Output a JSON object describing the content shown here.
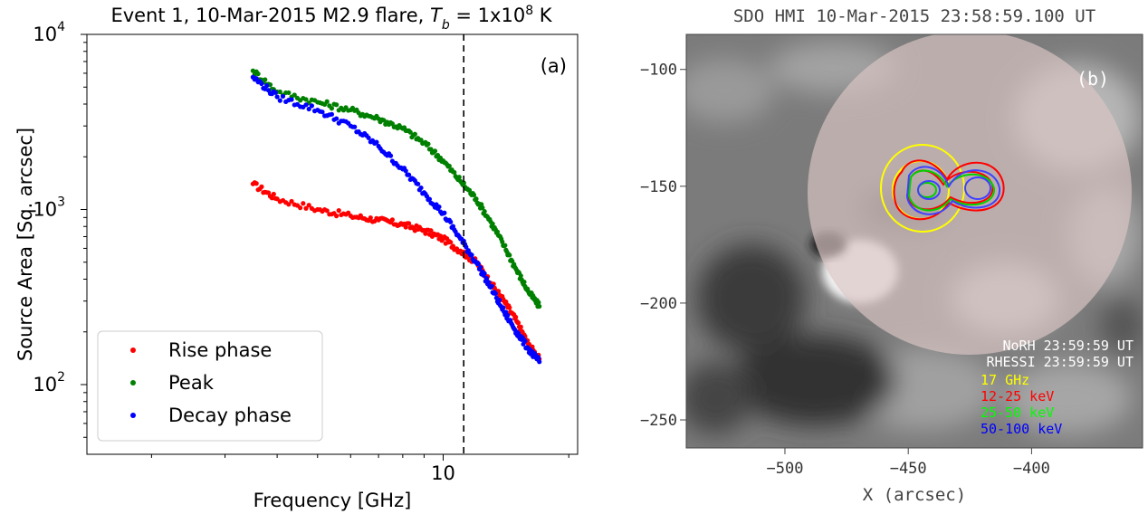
{
  "chart_data": [
    {
      "type": "scatter",
      "panel_label": "(a)",
      "title_prefix": "Event 1, 10-Mar-2015 M2.9 flare, ",
      "title_var": "T",
      "title_sub": "b",
      "title_mid": " = 1x10",
      "title_sup": "8",
      "title_suffix": " K",
      "xlabel": "Frequency [GHz]",
      "ylabel": "Source Area [Sq. arcsec]",
      "xscale": "log",
      "yscale": "log",
      "xlim": [
        1.4,
        21
      ],
      "ylim": [
        40,
        10000
      ],
      "x_major_tick": {
        "value": 10,
        "label": "10"
      },
      "y_major_ticks": [
        {
          "value": 100,
          "base": "10",
          "exp": "2"
        },
        {
          "value": 1000,
          "base": "10",
          "exp": "3"
        },
        {
          "value": 10000,
          "base": "10",
          "exp": "4"
        }
      ],
      "vline": 11.2,
      "legend": {
        "position": "lower-left",
        "entries": [
          "Rise phase",
          "Peak",
          "Decay phase"
        ]
      },
      "series": [
        {
          "name": "Rise phase",
          "color": "#ff0000",
          "x": [
            3.5,
            4.0,
            5.0,
            6.0,
            7.0,
            8.0,
            9.0,
            10.0,
            11.0,
            12.0,
            13.0,
            14.0,
            15.0,
            16.0,
            17.0
          ],
          "y": [
            1400,
            1150,
            1000,
            920,
            870,
            820,
            760,
            680,
            580,
            500,
            380,
            300,
            230,
            170,
            140
          ]
        },
        {
          "name": "Peak",
          "color": "#008000",
          "x": [
            3.5,
            4.0,
            5.0,
            6.0,
            7.0,
            8.0,
            9.0,
            10.0,
            11.0,
            12.0,
            13.0,
            14.0,
            15.0,
            16.0,
            17.0
          ],
          "y": [
            6200,
            4700,
            4100,
            3700,
            3300,
            2900,
            2400,
            1900,
            1450,
            1150,
            850,
            620,
            450,
            340,
            280
          ]
        },
        {
          "name": "Decay phase",
          "color": "#0000ff",
          "x": [
            3.5,
            4.0,
            5.0,
            6.0,
            7.0,
            8.0,
            9.0,
            10.0,
            11.0,
            12.0,
            13.0,
            14.0,
            15.0,
            16.0,
            17.0
          ],
          "y": [
            5700,
            4400,
            3700,
            3000,
            2300,
            1700,
            1250,
            950,
            680,
            500,
            360,
            260,
            200,
            160,
            135
          ]
        }
      ]
    },
    {
      "type": "image",
      "panel_label": "(b)",
      "title": "SDO HMI 10-Mar-2015 23:58:59.100 UT",
      "xlabel": "X (arcsec)",
      "xlim": [
        -540,
        -355
      ],
      "ylim": [
        -262,
        -85
      ],
      "x_ticks": [
        {
          "value": -500,
          "label": "−500"
        },
        {
          "value": -450,
          "label": "−450"
        },
        {
          "value": -400,
          "label": "−400"
        }
      ],
      "y_ticks": [
        {
          "value": -100,
          "label": "−100"
        },
        {
          "value": -150,
          "label": "−150"
        },
        {
          "value": -200,
          "label": "−200"
        },
        {
          "value": -250,
          "label": "−250"
        }
      ],
      "info_lines": [
        "NoRH 23:59:59 UT",
        "RHESSI 23:59:59 UT"
      ],
      "contour_legend": [
        {
          "label": "17 GHz",
          "color": "#ffff00"
        },
        {
          "label": "12-25 keV",
          "color": "#ff0000"
        },
        {
          "label": "25-50 keV",
          "color": "#00ff00"
        },
        {
          "label": "50-100 keV",
          "color": "#0000ff"
        }
      ]
    }
  ]
}
